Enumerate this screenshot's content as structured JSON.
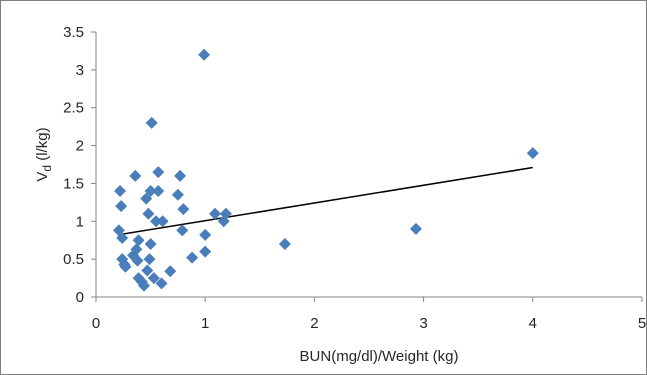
{
  "chart_data": {
    "type": "scatter",
    "title": "",
    "xlabel": "BUN(mg/dl)/Weight (kg)",
    "ylabel": {
      "main": "V",
      "sub": "d",
      "unit": " (l/kg)"
    },
    "xlim": [
      0,
      5
    ],
    "ylim": [
      0,
      3.5
    ],
    "x_ticks": [
      "0",
      "1",
      "2",
      "3",
      "4",
      "5"
    ],
    "y_ticks": [
      "0",
      "0.5",
      "1",
      "1.5",
      "2",
      "2.5",
      "3",
      "3.5"
    ],
    "grid": false,
    "legend": "none",
    "marker_color": "#4a7ebb",
    "trendline_color": "#000000",
    "series": [
      {
        "values": [
          [
            0.22,
            1.4
          ],
          [
            0.23,
            1.2
          ],
          [
            0.21,
            0.88
          ],
          [
            0.24,
            0.78
          ],
          [
            0.24,
            0.5
          ],
          [
            0.26,
            0.43
          ],
          [
            0.27,
            0.4
          ],
          [
            0.34,
            0.55
          ],
          [
            0.36,
            1.6
          ],
          [
            0.37,
            0.63
          ],
          [
            0.38,
            0.48
          ],
          [
            0.39,
            0.75
          ],
          [
            0.39,
            0.25
          ],
          [
            0.42,
            0.2
          ],
          [
            0.44,
            0.15
          ],
          [
            0.46,
            1.3
          ],
          [
            0.48,
            1.1
          ],
          [
            0.47,
            0.35
          ],
          [
            0.49,
            0.5
          ],
          [
            0.5,
            0.7
          ],
          [
            0.5,
            1.4
          ],
          [
            0.51,
            2.3
          ],
          [
            0.53,
            0.25
          ],
          [
            0.55,
            1.0
          ],
          [
            0.57,
            1.65
          ],
          [
            0.57,
            1.4
          ],
          [
            0.6,
            0.18
          ],
          [
            0.61,
            1.0
          ],
          [
            0.68,
            0.34
          ],
          [
            0.75,
            1.35
          ],
          [
            0.77,
            1.6
          ],
          [
            0.79,
            0.88
          ],
          [
            0.8,
            1.16
          ],
          [
            0.88,
            0.52
          ],
          [
            0.99,
            3.2
          ],
          [
            1.0,
            0.82
          ],
          [
            1.0,
            0.6
          ],
          [
            1.09,
            1.1
          ],
          [
            1.17,
            1.0
          ],
          [
            1.19,
            1.1
          ],
          [
            1.73,
            0.7
          ],
          [
            2.93,
            0.9
          ],
          [
            4.0,
            1.9
          ]
        ]
      }
    ],
    "trendline": {
      "x": [
        0.2,
        4.0
      ],
      "y": [
        0.82,
        1.71
      ]
    }
  }
}
